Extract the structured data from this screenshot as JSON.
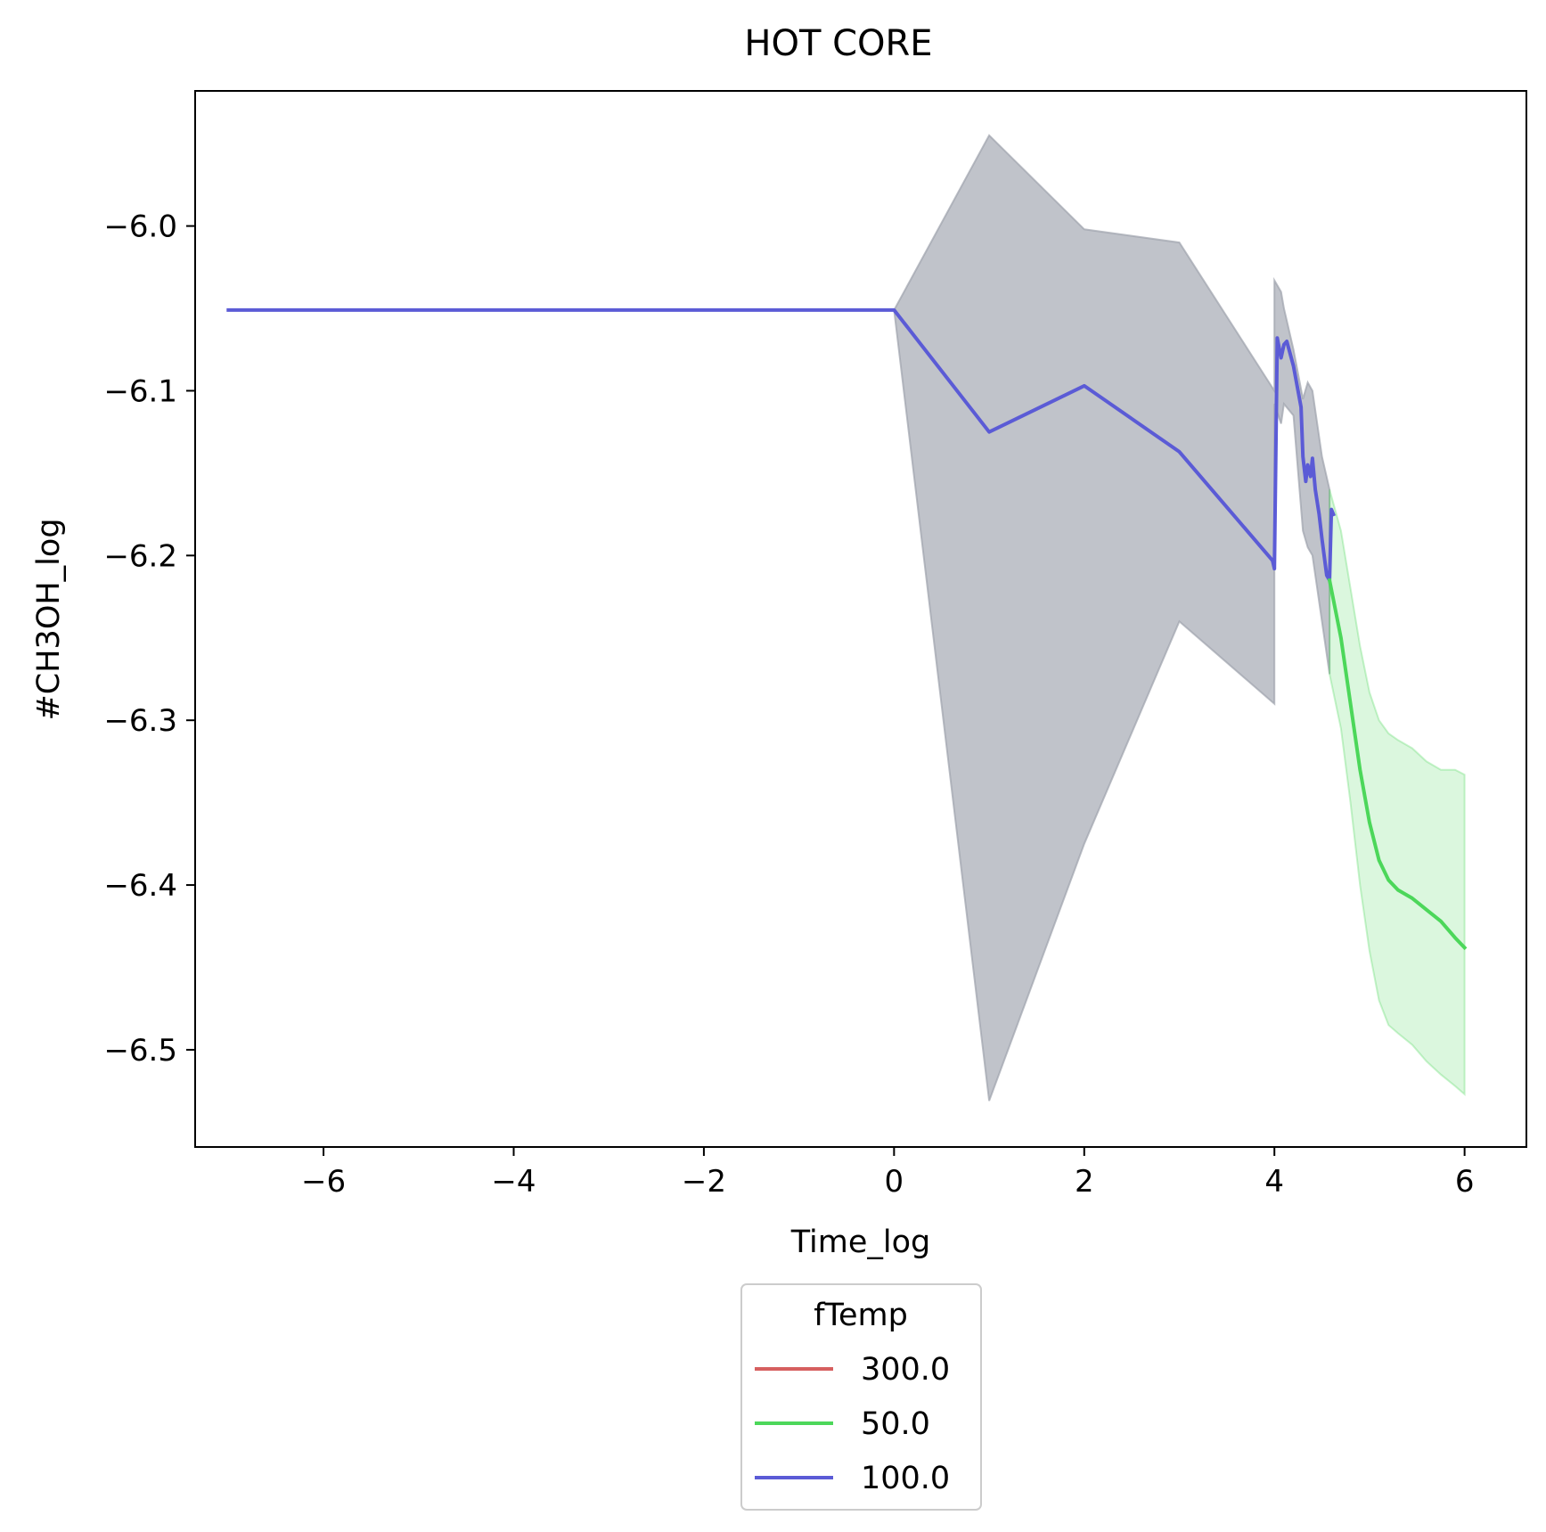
{
  "chart_data": {
    "type": "line",
    "title": "HOT CORE",
    "xlabel": "Time_log",
    "ylabel": "#CH3OH_log",
    "xlim": [
      -7.35,
      6.65
    ],
    "ylim": [
      -6.559,
      -5.918
    ],
    "xticks": [
      -6,
      -4,
      -2,
      0,
      2,
      4,
      6
    ],
    "xtick_labels": [
      "−6",
      "−4",
      "−2",
      "0",
      "2",
      "4",
      "6"
    ],
    "yticks": [
      -6.0,
      -6.1,
      -6.2,
      -6.3,
      -6.4,
      -6.5
    ],
    "ytick_labels": [
      "−6.0",
      "−6.1",
      "−6.2",
      "−6.3",
      "−6.4",
      "−6.5"
    ],
    "grid": false,
    "legend": {
      "title": "fTemp",
      "placement": "below-center",
      "entries": [
        {
          "label": "300.0",
          "color": "#d65f5f"
        },
        {
          "label": "50.0",
          "color": "#4cd75a"
        },
        {
          "label": "100.0",
          "color": "#5b5bd6"
        }
      ]
    },
    "series": [
      {
        "name": "100.0",
        "color": "#5b5bd6",
        "x": [
          -7.0,
          0.0,
          1.0,
          2.0,
          3.0,
          3.98,
          4.0,
          4.03,
          4.07,
          4.1,
          4.13,
          4.2,
          4.28,
          4.3,
          4.33,
          4.35,
          4.38,
          4.4,
          4.43,
          4.47,
          4.5,
          4.55,
          4.58,
          4.6,
          4.62
        ],
        "y": [
          -6.051,
          -6.051,
          -6.125,
          -6.097,
          -6.137,
          -6.203,
          -6.208,
          -6.068,
          -6.08,
          -6.072,
          -6.07,
          -6.085,
          -6.11,
          -6.14,
          -6.155,
          -6.145,
          -6.152,
          -6.141,
          -6.16,
          -6.175,
          -6.19,
          -6.212,
          -6.215,
          -6.172,
          -6.175
        ]
      },
      {
        "name": "50.0",
        "color": "#4cd75a",
        "x": [
          4.58,
          4.7,
          4.8,
          4.9,
          5.0,
          5.1,
          5.2,
          5.3,
          5.45,
          5.6,
          5.75,
          5.9,
          6.0
        ],
        "y": [
          -6.215,
          -6.25,
          -6.29,
          -6.33,
          -6.362,
          -6.385,
          -6.397,
          -6.403,
          -6.408,
          -6.415,
          -6.422,
          -6.432,
          -6.438
        ]
      }
    ],
    "confidence_bands": [
      {
        "series": "100.0",
        "color": "#9ea3ad",
        "x": [
          0.0,
          1.0,
          2.0,
          3.0,
          4.0,
          4.0,
          4.07,
          4.1,
          4.2,
          4.3,
          4.35,
          4.4,
          4.5,
          4.58
        ],
        "upper": [
          -6.051,
          -5.945,
          -6.002,
          -6.01,
          -6.1,
          -6.033,
          -6.04,
          -6.05,
          -6.075,
          -6.105,
          -6.095,
          -6.1,
          -6.14,
          -6.16
        ],
        "lower": [
          -6.051,
          -6.531,
          -6.375,
          -6.24,
          -6.29,
          -6.108,
          -6.12,
          -6.108,
          -6.115,
          -6.185,
          -6.195,
          -6.2,
          -6.24,
          -6.272
        ]
      },
      {
        "series": "50.0",
        "color": "#4cd75a",
        "x": [
          4.58,
          4.7,
          4.8,
          4.9,
          5.0,
          5.1,
          5.2,
          5.3,
          5.45,
          5.6,
          5.75,
          5.9,
          6.0
        ],
        "upper": [
          -6.16,
          -6.185,
          -6.22,
          -6.255,
          -6.283,
          -6.3,
          -6.308,
          -6.312,
          -6.317,
          -6.325,
          -6.33,
          -6.33,
          -6.333
        ],
        "lower": [
          -6.272,
          -6.305,
          -6.35,
          -6.4,
          -6.44,
          -6.47,
          -6.485,
          -6.49,
          -6.497,
          -6.507,
          -6.515,
          -6.522,
          -6.527
        ]
      }
    ]
  }
}
